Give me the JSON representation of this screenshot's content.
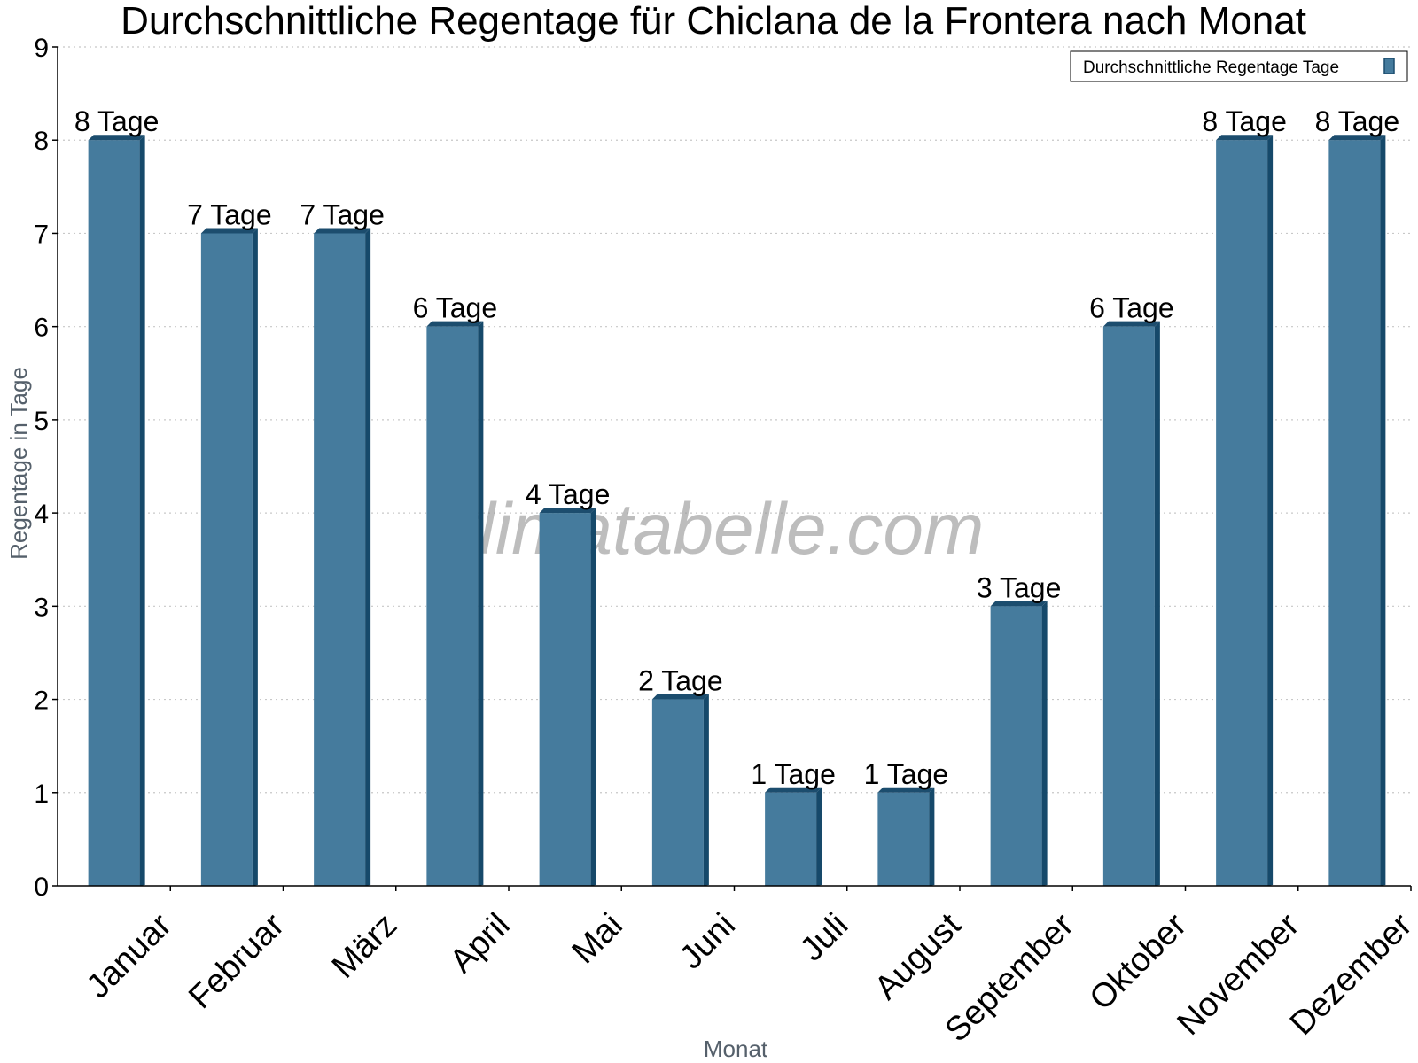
{
  "chart_data": {
    "type": "bar",
    "title": "Durchschnittliche Regentage für Chiclana de la Frontera nach Monat",
    "xlabel": "Monat",
    "ylabel": "Regentage in Tage",
    "categories": [
      "Januar",
      "Februar",
      "März",
      "April",
      "Mai",
      "Juni",
      "Juli",
      "August",
      "September",
      "Oktober",
      "November",
      "Dezember"
    ],
    "series": [
      {
        "name": "Durchschnittliche Regentage Tage",
        "values": [
          8,
          7,
          7,
          6,
          4,
          2,
          1,
          1,
          3,
          6,
          8,
          8
        ],
        "labels": [
          "8 Tage",
          "7 Tage",
          "7 Tage",
          "6 Tage",
          "4 Tage",
          "2 Tage",
          "1 Tage",
          "1 Tage",
          "3 Tage",
          "6 Tage",
          "8 Tage",
          "8 Tage"
        ],
        "color": "#457b9d"
      }
    ],
    "ylim": [
      0,
      9
    ],
    "yticks": [
      "0",
      "1",
      "2",
      "3",
      "4",
      "5",
      "6",
      "7",
      "8",
      "9"
    ],
    "grid": true,
    "legend_position": "top-right"
  },
  "watermark": "klimatabelle.com",
  "colors": {
    "bar": "#457b9d",
    "bar_top": "#1c4d6e",
    "bar_side": "#16496a",
    "grid": "#c8c8c8",
    "axis": "#000000"
  }
}
